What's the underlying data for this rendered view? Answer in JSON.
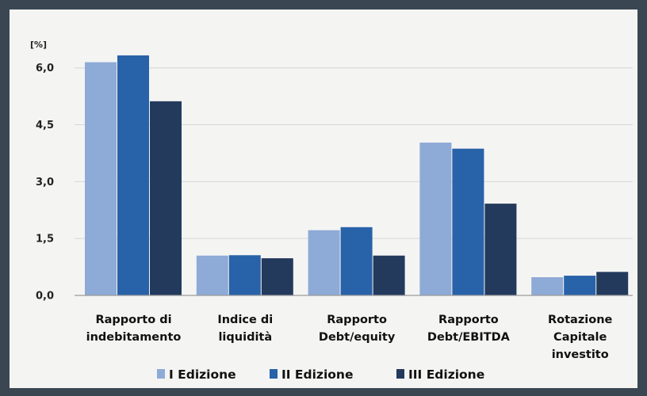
{
  "chart_data": {
    "type": "bar",
    "ylabel": "[%]",
    "ylim": [
      0,
      6.6
    ],
    "yticks": [
      "0,0",
      "1,5",
      "3,0",
      "4,5",
      "6,0"
    ],
    "ytick_values": [
      0,
      1.5,
      3.0,
      4.5,
      6.0
    ],
    "grid": true,
    "legend_position": "bottom",
    "categories": [
      [
        "Rapporto di",
        "indebitamento"
      ],
      [
        "Indice di",
        "liquidità"
      ],
      [
        "Rapporto",
        "Debt/equity"
      ],
      [
        "Rapporto",
        "Debt/EBITDA"
      ],
      [
        "Rotazione",
        "Capitale",
        "investito"
      ]
    ],
    "series": [
      {
        "name": "I Edizione",
        "color": "#8eaad6",
        "values": [
          6.15,
          1.05,
          1.72,
          4.03,
          0.48
        ]
      },
      {
        "name": "II Edizione",
        "color": "#2862a8",
        "values": [
          6.33,
          1.06,
          1.8,
          3.87,
          0.52
        ]
      },
      {
        "name": "III Edizione",
        "color": "#233a5d",
        "values": [
          5.12,
          0.98,
          1.05,
          2.42,
          0.62
        ]
      }
    ]
  }
}
